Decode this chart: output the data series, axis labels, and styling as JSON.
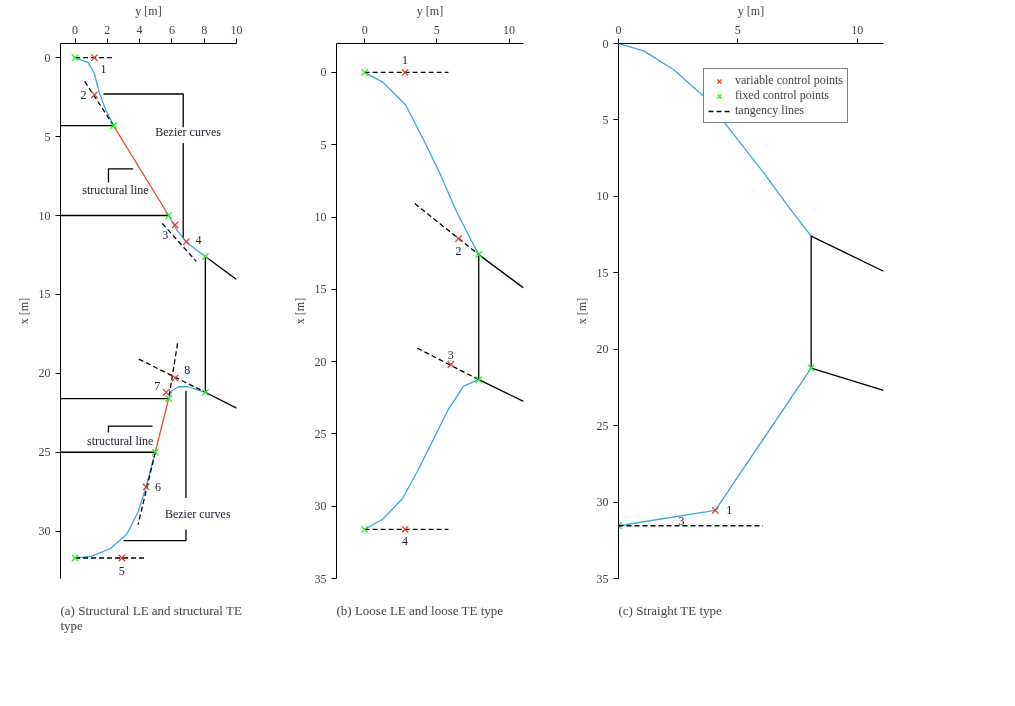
{
  "chart_data": [
    {
      "type": "line",
      "title": "(a) Structural LE and structural TE type",
      "xlabel": "y [m]",
      "ylabel": "x [m]",
      "xlim": [
        -0.9,
        10
      ],
      "xticks": [
        0,
        2,
        4,
        6,
        8,
        10
      ],
      "ylim": [
        33,
        -0.9
      ],
      "yticks": [
        0,
        5,
        10,
        15,
        20,
        25,
        30
      ],
      "grid": false,
      "series": [
        {
          "color": "#3aa8dc",
          "x": [
            0,
            0.8,
            1.2,
            1.5,
            1.9,
            2.38
          ],
          "values": [
            0,
            0.3,
            1.0,
            2.2,
            3.3,
            4.3
          ]
        },
        {
          "color": "#ee4b2b",
          "x": [
            2.38,
            5.8
          ],
          "values": [
            4.3,
            10
          ]
        },
        {
          "color": "#3aa8dc",
          "x": [
            5.8,
            6.3,
            6.9,
            8.07
          ],
          "values": [
            10,
            10.9,
            11.7,
            12.6
          ]
        },
        {
          "color": "#000000",
          "x": [
            8.07,
            10
          ],
          "values": [
            12.6,
            14.05
          ]
        },
        {
          "color": "#000000",
          "x": [
            8.07,
            8.07
          ],
          "values": [
            12.6,
            21.2
          ]
        },
        {
          "color": "#000000",
          "x": [
            8.07,
            10
          ],
          "values": [
            21.2,
            22.2
          ]
        },
        {
          "color": "#3aa8dc",
          "x": [
            5.8,
            6.0,
            6.4,
            7.0,
            8.07
          ],
          "values": [
            21.6,
            21.1,
            20.85,
            20.85,
            21.2
          ]
        },
        {
          "color": "#ee4b2b",
          "x": [
            5.8,
            4.97
          ],
          "values": [
            21.6,
            25
          ]
        },
        {
          "color": "#3aa8dc",
          "x": [
            4.97,
            4.6,
            4.4,
            3.9,
            3.2,
            2.2,
            1.0,
            0
          ],
          "values": [
            25,
            26.4,
            27.2,
            28.8,
            30.2,
            31.1,
            31.6,
            31.7
          ]
        },
        {
          "color": "#000000",
          "x": [
            -0.9,
            2.38
          ],
          "values": [
            4.3,
            4.3
          ]
        },
        {
          "color": "#000000",
          "x": [
            -0.9,
            5.8
          ],
          "values": [
            10,
            10
          ]
        },
        {
          "color": "#000000",
          "x": [
            -0.9,
            5.8
          ],
          "values": [
            21.6,
            21.6
          ]
        },
        {
          "color": "#000000",
          "x": [
            -0.9,
            4.97
          ],
          "values": [
            25,
            25
          ]
        },
        {
          "color": "#000000",
          "x": [
            6.7,
            6.7,
            1.76
          ],
          "values": [
            4.4,
            2.3,
            2.3
          ]
        },
        {
          "color": "#000000",
          "x": [
            6.7,
            6.7
          ],
          "values": [
            5.4,
            11.4
          ]
        },
        {
          "color": "#000000",
          "x": [
            2.07,
            2.07,
            3.6
          ],
          "values": [
            7.9,
            7.05,
            7.05
          ]
        },
        {
          "color": "#000000",
          "x": [
            2.07,
            2.07,
            4.8
          ],
          "values": [
            23.75,
            23.35,
            23.35
          ]
        },
        {
          "color": "#000000",
          "x": [
            6.87,
            6.87
          ],
          "values": [
            27.9,
            21.1
          ]
        },
        {
          "color": "#000000",
          "x": [
            6.87,
            6.87,
            3.0
          ],
          "values": [
            29.9,
            30.6,
            30.6
          ]
        },
        {
          "color": "#000000",
          "line_style": "dashed",
          "x": [
            0,
            2.4
          ],
          "values": [
            0,
            0
          ]
        },
        {
          "color": "#000000",
          "line_style": "dashed",
          "x": [
            0.6,
            2.38
          ],
          "values": [
            1.5,
            4.3
          ]
        },
        {
          "color": "#000000",
          "line_style": "dashed",
          "x": [
            5.4,
            7.5
          ],
          "values": [
            10.5,
            12.9
          ]
        },
        {
          "color": "#000000",
          "line_style": "dashed",
          "x": [
            3.95,
            8.07
          ],
          "values": [
            19.1,
            21.2
          ]
        },
        {
          "color": "#000000",
          "line_style": "dashed",
          "x": [
            6.35,
            5.8
          ],
          "values": [
            18.1,
            21.6
          ]
        },
        {
          "color": "#000000",
          "line_style": "dashed",
          "x": [
            4.97,
            3.9
          ],
          "values": [
            25,
            29.6
          ]
        },
        {
          "color": "#000000",
          "line_style": "dashed",
          "x": [
            0,
            4.35
          ],
          "values": [
            31.7,
            31.7
          ]
        },
        {
          "type": "scatter",
          "marker": "cross",
          "color": "#e04030",
          "x": [
            1.2,
            1.2,
            6.2,
            6.9,
            2.9,
            4.4,
            5.65,
            6.2
          ],
          "values": [
            0,
            2.35,
            10.6,
            11.65,
            31.7,
            27.2,
            21.2,
            20.3
          ]
        },
        {
          "type": "scatter",
          "marker": "cross",
          "color": "#22ee22",
          "x": [
            0,
            2.38,
            5.8,
            8.07,
            8.07,
            5.8,
            4.97,
            0
          ],
          "values": [
            0,
            4.3,
            10,
            12.6,
            21.2,
            21.6,
            25,
            31.7
          ]
        }
      ],
      "annotations": [
        {
          "text": "1",
          "x": 1.2,
          "y": 0
        },
        {
          "text": "2",
          "x": 1.2,
          "y": 2.35
        },
        {
          "text": "3",
          "x": 6.2,
          "y": 10.6
        },
        {
          "text": "4",
          "x": 6.9,
          "y": 11.65
        },
        {
          "text": "5",
          "x": 2.9,
          "y": 31.7
        },
        {
          "text": "6",
          "x": 4.4,
          "y": 27.2
        },
        {
          "text": "7",
          "x": 5.65,
          "y": 21.2
        },
        {
          "text": "8",
          "x": 6.2,
          "y": 20.3
        },
        "Bezier curves",
        "structural line",
        "structural line",
        "Bezier curves"
      ]
    },
    {
      "type": "line",
      "title": "(b) Loose LE and loose TE type",
      "xlabel": "y [m]",
      "ylabel": "x [m]",
      "xlim": [
        -1.95,
        11
      ],
      "xticks": [
        0,
        5,
        10
      ],
      "ylim": [
        35,
        -2
      ],
      "yticks": [
        0,
        5,
        10,
        15,
        20,
        25,
        30,
        35
      ],
      "grid": false,
      "series": [
        {
          "color": "#3aa8dc",
          "x": [
            0,
            1.25,
            2.85,
            4.2,
            5.25,
            6.3,
            7.1,
            7.9
          ],
          "values": [
            0,
            0.67,
            2.27,
            4.9,
            7.07,
            9.5,
            11.07,
            12.6
          ]
        },
        {
          "color": "#3aa8dc",
          "x": [
            7.9,
            6.85,
            5.8,
            4.7,
            3.65,
            2.6,
            1.25,
            0
          ],
          "values": [
            21.25,
            21.7,
            23.3,
            25.5,
            27.6,
            29.5,
            30.9,
            31.6
          ]
        },
        {
          "color": "#000000",
          "x": [
            7.9,
            11
          ],
          "values": [
            12.6,
            14.9
          ]
        },
        {
          "color": "#000000",
          "x": [
            7.9,
            7.9
          ],
          "values": [
            12.6,
            21.25
          ]
        },
        {
          "color": "#000000",
          "x": [
            7.9,
            11
          ],
          "values": [
            21.25,
            22.75
          ]
        },
        {
          "color": "#000000",
          "line_style": "dashed",
          "x": [
            0,
            5.8
          ],
          "values": [
            0,
            0
          ]
        },
        {
          "color": "#000000",
          "line_style": "dashed",
          "x": [
            3.47,
            7.9
          ],
          "values": [
            9.07,
            12.6
          ]
        },
        {
          "color": "#000000",
          "line_style": "dashed",
          "x": [
            3.65,
            7.9
          ],
          "values": [
            19.07,
            21.25
          ]
        },
        {
          "color": "#000000",
          "line_style": "dashed",
          "x": [
            0,
            5.8
          ],
          "values": [
            31.6,
            31.6
          ]
        },
        {
          "type": "scatter",
          "marker": "cross",
          "color": "#e04030",
          "x": [
            2.8,
            6.5,
            5.97,
            2.8
          ],
          "values": [
            0,
            11.5,
            20.2,
            31.6
          ]
        },
        {
          "type": "scatter",
          "marker": "cross",
          "color": "#22ee22",
          "x": [
            0,
            7.9,
            7.9,
            0
          ],
          "values": [
            0,
            12.6,
            21.25,
            31.6
          ]
        }
      ],
      "annotations": [
        {
          "text": "1",
          "x": 2.8,
          "y": 0
        },
        {
          "text": "2",
          "x": 6.5,
          "y": 11.5
        },
        {
          "text": "3",
          "x": 5.97,
          "y": 20.2
        },
        {
          "text": "4",
          "x": 2.8,
          "y": 31.6
        }
      ]
    },
    {
      "type": "line",
      "title": "(c) Straight TE type",
      "xlabel": "y [m]",
      "ylabel": "x [m]",
      "xlim": [
        0,
        11.1
      ],
      "xticks": [
        0,
        5,
        10
      ],
      "ylim": [
        35,
        0
      ],
      "yticks": [
        0,
        5,
        10,
        15,
        20,
        25,
        30,
        35
      ],
      "grid": false,
      "legend": "top right",
      "series": [
        {
          "color": "#3aa8dc",
          "x": [
            0,
            1.08,
            2.34,
            3.6,
            4.85,
            6.1,
            7.1,
            8.07
          ],
          "values": [
            0,
            0.5,
            1.75,
            3.5,
            6.0,
            8.5,
            10.64,
            12.6
          ]
        },
        {
          "color": "#000000",
          "x": [
            8.07,
            11.1
          ],
          "values": [
            12.6,
            14.9
          ]
        },
        {
          "color": "#000000",
          "x": [
            8.07,
            8.07
          ],
          "values": [
            12.6,
            21.23
          ]
        },
        {
          "color": "#000000",
          "x": [
            8.07,
            11.1
          ],
          "values": [
            21.23,
            22.7
          ]
        },
        {
          "color": "#3aa8dc",
          "x": [
            8.07,
            4.05,
            0
          ],
          "values": [
            21.23,
            30.55,
            31.55
          ]
        },
        {
          "name": "variable control points",
          "type": "scatter",
          "marker": "cross",
          "color": "#e04030",
          "x": [
            4.05
          ],
          "values": [
            30.55
          ]
        },
        {
          "name": "fixed control points",
          "type": "scatter",
          "marker": "cross",
          "color": "#22ee22",
          "x": [
            0,
            8.07
          ],
          "values": [
            31.55,
            21.23
          ]
        },
        {
          "name": "tangency lines",
          "color": "#000000",
          "line_style": "dashed",
          "x": [
            0,
            6.05
          ],
          "values": [
            31.55,
            31.55
          ]
        }
      ],
      "annotations": [
        {
          "text": "1",
          "x": 4.05,
          "y": 30.55
        },
        {
          "text": "3",
          "x": 2.64,
          "y": 30.9
        }
      ]
    }
  ]
}
